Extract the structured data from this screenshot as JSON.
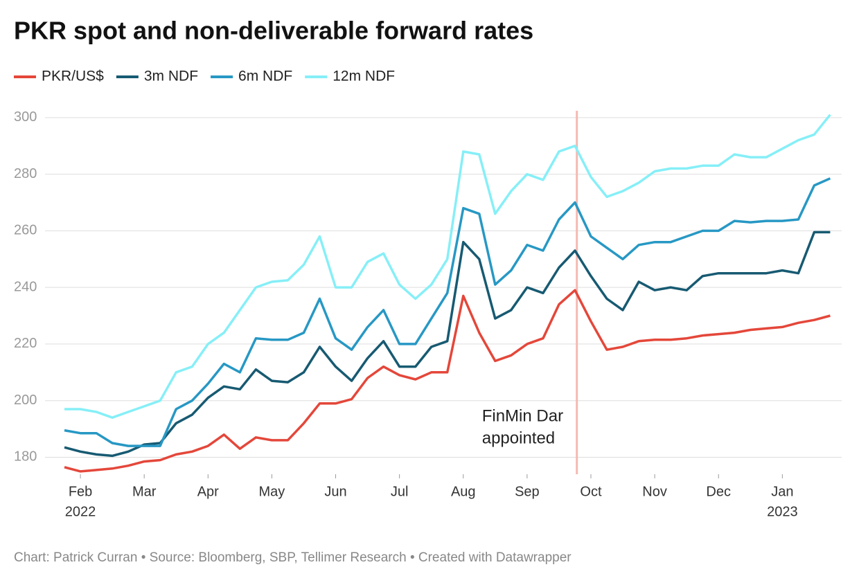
{
  "chart_data": {
    "type": "line",
    "title": "PKR spot and non-deliverable forward rates",
    "source": "Chart: Patrick Curran • Source: Bloomberg, SBP, Tellimer Research • Created with Datawrapper",
    "x": [
      1.75,
      2.0,
      2.25,
      2.5,
      2.75,
      3.0,
      3.25,
      3.5,
      3.75,
      4.0,
      4.25,
      4.5,
      4.75,
      5.0,
      5.25,
      5.5,
      5.75,
      6.0,
      6.25,
      6.5,
      6.75,
      7.0,
      7.25,
      7.5,
      7.75,
      8.0,
      8.25,
      8.5,
      8.75,
      9.0,
      9.25,
      9.5,
      9.75,
      10.0,
      10.25,
      10.5,
      10.75,
      11.0,
      11.25,
      11.5,
      11.75,
      12.0,
      12.25,
      12.5,
      12.75,
      13.0,
      13.25,
      13.5,
      13.75
    ],
    "series": [
      {
        "name": "PKR/US$",
        "color": "#e4473a",
        "values": [
          176.5,
          175,
          175.5,
          176,
          177,
          178.5,
          179,
          181,
          182,
          184,
          188,
          183,
          187,
          186,
          186,
          192,
          199,
          199,
          200.5,
          208,
          212,
          209,
          207.5,
          210,
          210,
          237,
          224,
          214,
          216,
          220,
          222,
          234,
          239,
          228,
          218,
          219,
          221,
          221.5,
          221.5,
          222,
          223,
          223.5,
          224,
          225,
          225.5,
          226,
          227.5,
          228.5,
          230
        ]
      },
      {
        "name": "3m NDF",
        "color": "#175a72",
        "values": [
          183.5,
          182,
          181,
          180.5,
          182,
          184.5,
          185,
          192,
          195,
          201,
          205,
          204,
          211,
          207,
          206.5,
          210,
          219,
          212,
          207,
          215,
          221,
          212,
          212,
          219,
          221,
          256,
          250,
          229,
          232,
          240,
          238,
          247,
          253,
          244,
          236,
          232,
          242,
          239,
          240,
          239,
          244,
          245,
          245,
          245,
          245,
          246,
          245,
          259.5,
          259.5
        ]
      },
      {
        "name": "6m NDF",
        "color": "#2798c4",
        "values": [
          189.5,
          188.5,
          188.5,
          185,
          184,
          184,
          184,
          197,
          200,
          206,
          213,
          210,
          222,
          221.5,
          221.5,
          224,
          236,
          222,
          218,
          226,
          232,
          220,
          220,
          229,
          238,
          268,
          266,
          241,
          246,
          255,
          253,
          264,
          270,
          258,
          254,
          250,
          255,
          256,
          256,
          258,
          260,
          260,
          263.5,
          263,
          263.5,
          263.5,
          264,
          276,
          278.5
        ]
      },
      {
        "name": "12m NDF",
        "color": "#86eff7",
        "values": [
          197,
          197,
          196,
          194,
          196,
          198,
          200,
          210,
          212,
          220,
          224,
          232,
          240,
          242,
          242.5,
          248,
          258,
          240,
          240,
          249,
          252,
          241,
          236,
          241,
          250,
          288,
          287,
          266,
          274,
          280,
          278,
          288,
          290,
          279,
          272,
          274,
          277,
          281,
          282,
          282,
          283,
          283,
          287,
          286,
          286,
          289,
          292,
          294,
          301
        ]
      }
    ],
    "xlim": [
      1.5,
      13.93
    ],
    "xticks": [
      {
        "value": 2,
        "label": "Feb"
      },
      {
        "value": 3,
        "label": "Mar"
      },
      {
        "value": 4,
        "label": "Apr"
      },
      {
        "value": 5,
        "label": "May"
      },
      {
        "value": 6,
        "label": "Jun"
      },
      {
        "value": 7,
        "label": "Jul"
      },
      {
        "value": 8,
        "label": "Aug"
      },
      {
        "value": 9,
        "label": "Sep"
      },
      {
        "value": 10,
        "label": "Oct"
      },
      {
        "value": 11,
        "label": "Nov"
      },
      {
        "value": 12,
        "label": "Dec"
      },
      {
        "value": 13,
        "label": "Jan"
      }
    ],
    "year_labels": [
      {
        "value": 2,
        "label": "2022"
      },
      {
        "value": 13,
        "label": "2023"
      }
    ],
    "ylim": [
      174,
      302.4
    ],
    "yticks": [
      180,
      200,
      220,
      240,
      260,
      280,
      300
    ],
    "grid": true,
    "annotation": {
      "x": 9.78,
      "color": "#f5b9b0",
      "lines": [
        "FinMin Dar",
        "appointed"
      ]
    }
  }
}
